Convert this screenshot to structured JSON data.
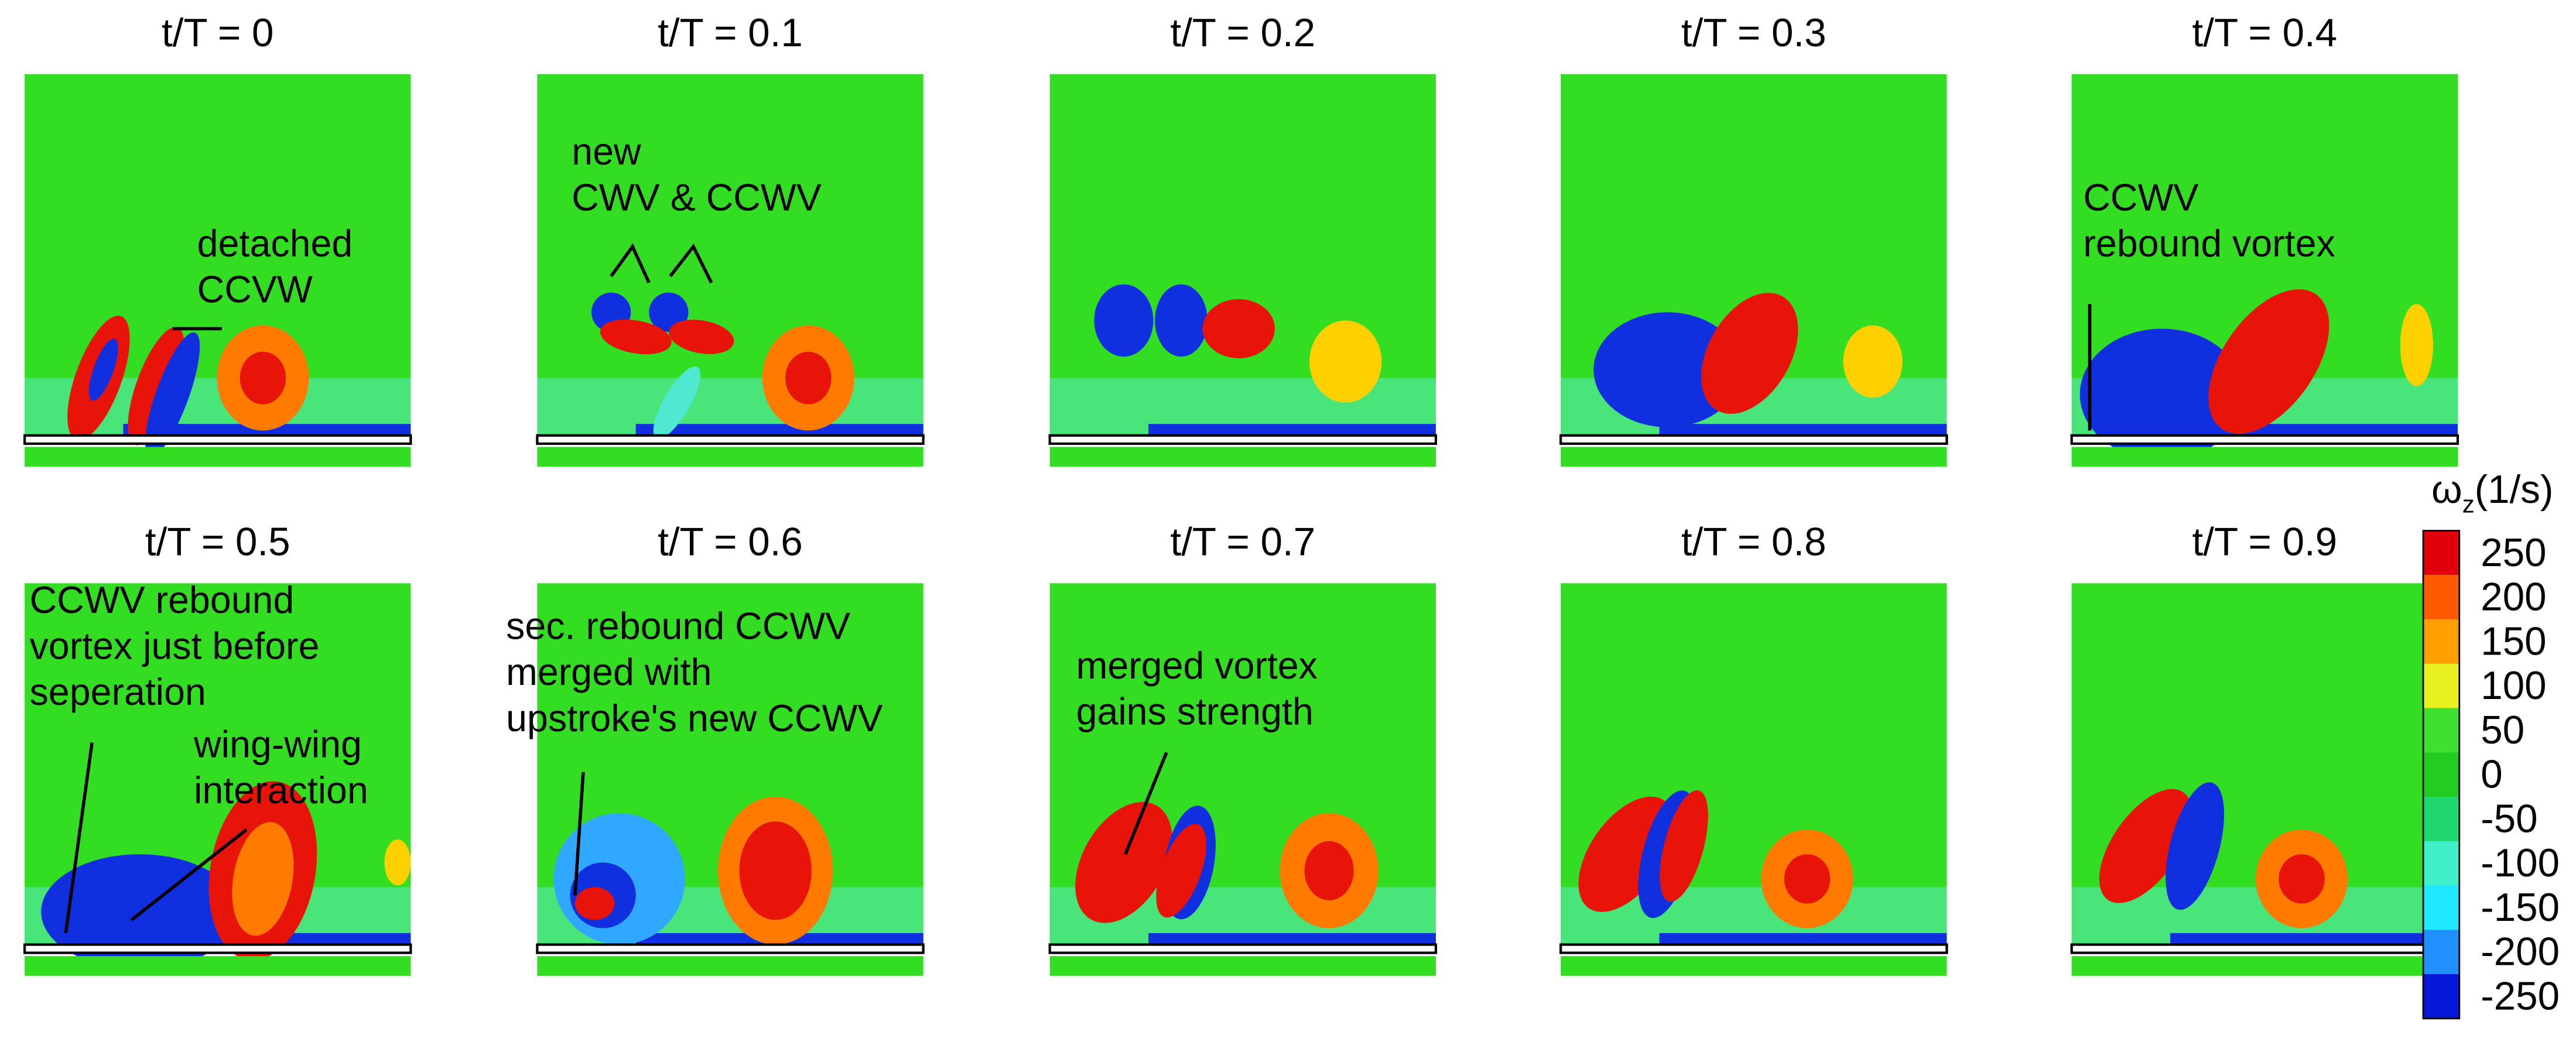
{
  "panels": [
    {
      "title": "t/T = 0",
      "annotations": [
        {
          "lines": [
            "detached",
            "CCVW"
          ]
        }
      ]
    },
    {
      "title": "t/T = 0.1",
      "annotations": [
        {
          "lines": [
            "new",
            "CWV & CCWV"
          ]
        }
      ]
    },
    {
      "title": "t/T = 0.2",
      "annotations": []
    },
    {
      "title": "t/T = 0.3",
      "annotations": []
    },
    {
      "title": "t/T = 0.4",
      "annotations": [
        {
          "lines": [
            "CCWV",
            "rebound vortex"
          ]
        }
      ]
    },
    {
      "title": "t/T = 0.5",
      "annotations": [
        {
          "lines": [
            "CCWV rebound",
            "vortex just before",
            "seperation"
          ]
        },
        {
          "lines": [
            "wing-wing",
            "interaction"
          ]
        }
      ]
    },
    {
      "title": "t/T = 0.6",
      "annotations": [
        {
          "lines": [
            "sec. rebound CCWV",
            "merged with",
            "upstroke's new CCWV"
          ]
        }
      ]
    },
    {
      "title": "t/T = 0.7",
      "annotations": [
        {
          "lines": [
            "merged vortex",
            "gains strength"
          ]
        }
      ]
    },
    {
      "title": "t/T = 0.8",
      "annotations": []
    },
    {
      "title": "t/T = 0.9",
      "annotations": []
    }
  ],
  "colorbar": {
    "label": "ω",
    "label_sub": "z",
    "label_unit": "(1/s)",
    "ticks": [
      250,
      200,
      150,
      100,
      50,
      0,
      -50,
      -100,
      -150,
      -200,
      -250
    ]
  }
}
